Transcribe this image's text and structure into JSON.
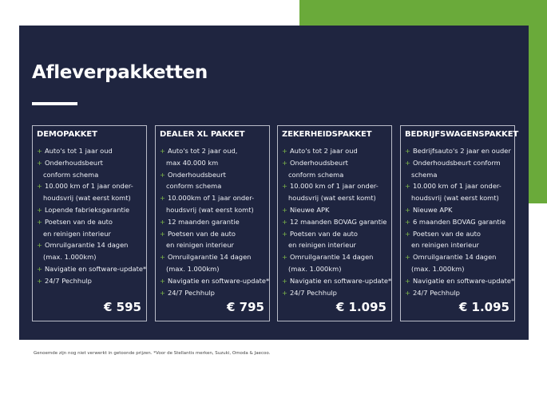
{
  "title": "Afleverpakketten",
  "colors": {
    "navy": "#1f2540",
    "green": "#6aaa3a",
    "plus": "#7fb84a"
  },
  "bullet_icon": "plus-icon",
  "packages": [
    {
      "name": "DEMOPAKKET",
      "price": "€ 595",
      "items": [
        [
          "Auto's tot 1 jaar oud"
        ],
        [
          "Onderhoudsbeurt",
          "conform schema"
        ],
        [
          "10.000 km of 1 jaar onder-",
          "houdsvrij (wat eerst komt)"
        ],
        [
          "Lopende fabrieksgarantie"
        ],
        [
          "Poetsen van de auto",
          "en reinigen interieur"
        ],
        [
          "Omruilgarantie 14 dagen",
          "(max. 1.000km)"
        ],
        [
          "Navigatie en software-update*"
        ],
        [
          "24/7 Pechhulp"
        ]
      ]
    },
    {
      "name": "DEALER XL PAKKET",
      "price": "€ 795",
      "items": [
        [
          "Auto's tot 2 jaar oud,",
          "max 40.000 km"
        ],
        [
          "Onderhoudsbeurt",
          "conform schema"
        ],
        [
          "10.000km of 1 jaar onder-",
          "houdsvrij (wat eerst komt)"
        ],
        [
          "12 maanden garantie"
        ],
        [
          "Poetsen van de auto",
          "en reinigen interieur"
        ],
        [
          "Omruilgarantie 14 dagen",
          "(max. 1.000km)"
        ],
        [
          "Navigatie en software-update*"
        ],
        [
          "24/7 Pechhulp"
        ]
      ]
    },
    {
      "name": "ZEKERHEIDSPAKKET",
      "price": "€ 1.095",
      "items": [
        [
          "Auto's tot 2 jaar oud"
        ],
        [
          "Onderhoudsbeurt",
          "conform schema"
        ],
        [
          "10.000 km of 1 jaar onder-",
          "houdsvrij (wat eerst komt)"
        ],
        [
          "Nieuwe APK"
        ],
        [
          "12 maanden BOVAG garantie"
        ],
        [
          "Poetsen van de auto",
          "en reinigen interieur"
        ],
        [
          "Omruilgarantie 14 dagen",
          "(max. 1.000km)"
        ],
        [
          "Navigatie en software-update*"
        ],
        [
          "24/7 Pechhulp"
        ]
      ]
    },
    {
      "name": "BEDRIJFSWAGENSPAKKET",
      "price": "€ 1.095",
      "items": [
        [
          "Bedrijfsauto's 2 jaar en ouder"
        ],
        [
          "Onderhoudsbeurt conform",
          "schema"
        ],
        [
          "10.000 km of 1 jaar onder-",
          "houdsvrij (wat eerst komt)"
        ],
        [
          "Nieuwe APK"
        ],
        [
          "6 maanden BOVAG garantie"
        ],
        [
          "Poetsen van de auto",
          "en reinigen interieur"
        ],
        [
          "Omruilgarantie 14 dagen",
          "(max. 1.000km)"
        ],
        [
          "Navigatie en software-update*"
        ],
        [
          "24/7 Pechhulp"
        ]
      ]
    }
  ],
  "footnote": "Genoemde zijn nog niet verwerkt in getoonde prijzen. *Voor de Stellantis merken, Suzuki, Omoda & Jaecoo."
}
